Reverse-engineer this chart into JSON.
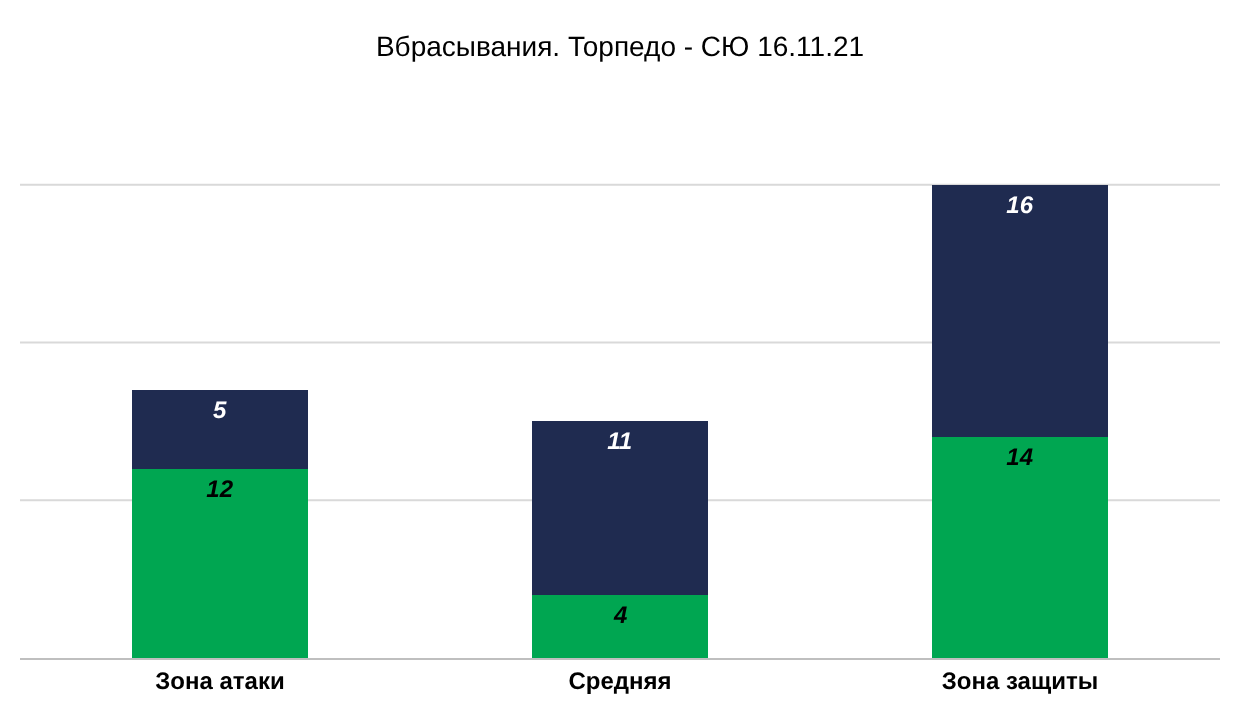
{
  "chart_data": {
    "type": "bar",
    "title": "Вбрасывания. Торпедо - СЮ 16.11.21",
    "categories": [
      "Зона атаки",
      "Средняя",
      "Зона защиты"
    ],
    "stacked": true,
    "data_labels": true,
    "tick_labels": "x",
    "ref_lines": [
      {
        "axis": "y",
        "value": 10,
        "color": "#d9d9d9"
      },
      {
        "axis": "y",
        "value": 20,
        "color": "#d9d9d9"
      },
      {
        "axis": "y",
        "value": 30,
        "color": "#d9d9d9"
      }
    ],
    "series": [
      {
        "color": "#00a651",
        "values": [
          12,
          4,
          14
        ]
      },
      {
        "color": "#1f2b50",
        "values": [
          5,
          11,
          16
        ]
      }
    ]
  }
}
